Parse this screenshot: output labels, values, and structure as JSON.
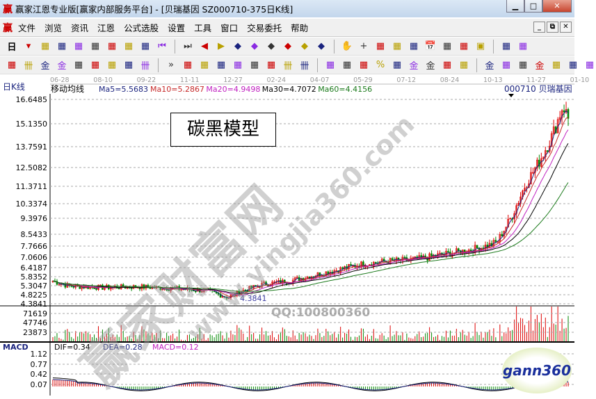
{
  "window": {
    "title": "赢家江恩专业版[赢家内部服务平台] - [贝瑞基因  SZ000710-375日K线]",
    "logo": "赢",
    "controls": [
      "minimize",
      "maximize",
      "close"
    ]
  },
  "menu": {
    "logo": "赢",
    "items": [
      "文件",
      "浏览",
      "资讯",
      "江恩",
      "公式选股",
      "设置",
      "工具",
      "窗口",
      "交易委托",
      "帮助"
    ]
  },
  "toolbar1": {
    "period": "日",
    "icons": [
      "period-dropdown",
      "kline-window-icon",
      "info-icon",
      "ma3-icon",
      "ma9-icon",
      "candle-type-icon",
      "weekly-icon",
      "flag-icon",
      "first-icon",
      "last-icon",
      "left-icon",
      "right-icon",
      "gann-arrow-left-icon",
      "gann-arrow-right-icon",
      "gann-arrow-lr-icon",
      "gann-arrow-in-icon",
      "gann-arrow-out-icon",
      "gann-arrow-all-icon",
      "hand-icon",
      "crosshair-icon",
      "line-tool-icon",
      "jie-icon",
      "pattern-icon",
      "calendar-icon",
      "calculator-icon",
      "notes-icon",
      "save-icon",
      "network-icon",
      "print-icon"
    ]
  },
  "toolbar2": {
    "icons": [
      "pen-icon",
      "grid-icon",
      "gold-icon",
      "gold2-icon",
      "f-icon",
      "spiral-icon",
      "pen2-icon",
      "circle-icon",
      "grid2-icon",
      "more-icon",
      "box-icon",
      "fan-icon",
      "square-fan-icon",
      "square2-icon",
      "angle-icon",
      "zigzag-icon",
      "grid3-icon",
      "grid4-icon",
      "parallel-icon",
      "ruler-icon",
      "percent-slash-icon",
      "percent-icon",
      "percent-lines-icon",
      "gold-circle-icon",
      "gold-lines-icon",
      "arrow-pen-icon",
      "wave-icon",
      "gold-line-icon",
      "j-icon",
      "f-lines-icon",
      "gold-slope-icon",
      "shen-icon",
      "ying-icon",
      "si-icon"
    ]
  },
  "chart": {
    "panel_label": "日K线",
    "indicator_name": "移动均线",
    "ma": [
      {
        "label": "Ma5=5.5683",
        "color": "#1a237e"
      },
      {
        "label": "Ma10=5.2867",
        "color": "#c62828"
      },
      {
        "label": "Ma20=4.9498",
        "color": "#c020c0"
      },
      {
        "label": "Ma30=4.7072",
        "color": "#000000"
      },
      {
        "label": "Ma60=4.4156",
        "color": "#1b7a1b"
      }
    ],
    "stock": "000710  贝瑞基因",
    "dates": [
      "06-28",
      "08-10",
      "09-22",
      "11-11",
      "12-27",
      "02-24",
      "04-07",
      "05-29",
      "07-12",
      "08-24",
      "10-13",
      "11-27",
      "01-10"
    ],
    "price_ticks": [
      "16.6485",
      "15.1350",
      "13.7591",
      "12.5082",
      "11.3711",
      "10.3374",
      "9.3976",
      "8.5433",
      "7.7666",
      "7.0606",
      "6.4187",
      "5.8352",
      "5.3047",
      "4.8225",
      "4.3841"
    ],
    "low_mark": "4.3841",
    "annotation": "碳黑模型",
    "volume_ticks": [
      "71619",
      "47746",
      "23873"
    ],
    "macd": {
      "name": "MACD",
      "dif": "DIF=0.34",
      "dea": "DEA=0.28",
      "macd": "MACD=0.12",
      "ticks": [
        "1.12",
        "0.77",
        "0.42",
        "0.07"
      ]
    },
    "watermarks": [
      "赢家财富网",
      "www.yingjia360.com",
      "QQ:100800360"
    ],
    "badge": "gann360"
  },
  "chart_data": {
    "type": "candlestick",
    "bars": 375,
    "price_range": [
      4.3841,
      16.6485
    ],
    "close_path": [
      [
        0,
        5.6
      ],
      [
        12,
        5.3
      ],
      [
        39,
        5.2
      ],
      [
        66,
        5.25
      ],
      [
        93,
        5.15
      ],
      [
        120,
        5.0
      ],
      [
        136,
        4.6
      ],
      [
        147,
        5.0
      ],
      [
        163,
        5.4
      ],
      [
        184,
        5.6
      ],
      [
        200,
        5.9
      ],
      [
        222,
        6.3
      ],
      [
        238,
        6.6
      ],
      [
        259,
        6.8
      ],
      [
        281,
        6.9
      ],
      [
        302,
        7.2
      ],
      [
        324,
        7.5
      ],
      [
        345,
        8.0
      ],
      [
        356,
        9.5
      ],
      [
        340,
        7.8
      ],
      [
        356,
        9.5
      ],
      [
        367,
        11.5
      ],
      [
        377,
        12.8
      ],
      [
        388,
        14.5
      ],
      [
        396,
        16.3
      ],
      [
        400,
        15.5
      ]
    ]
  }
}
